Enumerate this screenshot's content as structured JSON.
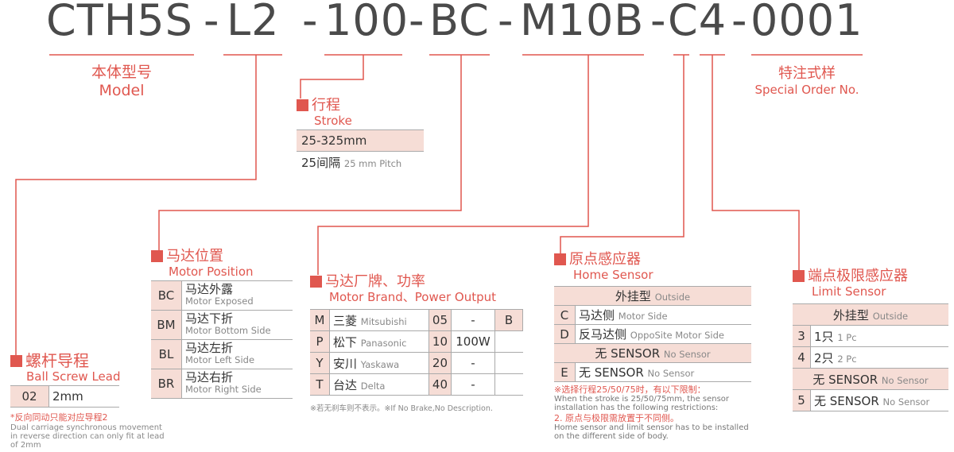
{
  "code": {
    "parts": [
      "CTH5S",
      "L2",
      "100",
      "BC",
      "M10B",
      "C4",
      "0001"
    ],
    "sep": "-"
  },
  "model": {
    "cn": "本体型号",
    "en": "Model"
  },
  "special": {
    "cn": "特注式样",
    "en": "Special Order No."
  },
  "stroke": {
    "cn": "行程",
    "en": "Stroke",
    "range": "25-325mm",
    "pitch_cn": "25间隔",
    "pitch_en": "25 mm Pitch"
  },
  "lead": {
    "cn": "螺杆导程",
    "en": "Ball Screw Lead",
    "code": "02",
    "value": "2mm",
    "note_cn": "*反向同动只能对应导程2",
    "note_en": "Dual carriage synchronous movement in reverse direction can only fit at lead of 2mm"
  },
  "position": {
    "cn": "马达位置",
    "en": "Motor Position",
    "rows": [
      {
        "code": "BC",
        "cn": "马达外露",
        "en": "Motor Exposed"
      },
      {
        "code": "BM",
        "cn": "马达下折",
        "en": "Motor Bottom Side"
      },
      {
        "code": "BL",
        "cn": "马达左折",
        "en": "Motor Left Side"
      },
      {
        "code": "BR",
        "cn": "马达右折",
        "en": "Motor Right Side"
      }
    ]
  },
  "brand": {
    "cn": "马达厂牌、功率",
    "en": "Motor Brand、Power Output",
    "rows": [
      {
        "code": "M",
        "cn": "三菱",
        "en": "Mitsubishi",
        "p": "05",
        "w": "-",
        "b": "B"
      },
      {
        "code": "P",
        "cn": "松下",
        "en": "Panasonic",
        "p": "10",
        "w": "100W",
        "b": ""
      },
      {
        "code": "Y",
        "cn": "安川",
        "en": "Yaskawa",
        "p": "20",
        "w": "-",
        "b": ""
      },
      {
        "code": "T",
        "cn": "台达",
        "en": "Delta",
        "p": "40",
        "w": "-",
        "b": ""
      }
    ],
    "note": "※若无刹车则不表示。※If No Brake,No Description."
  },
  "home": {
    "cn": "原点感应器",
    "en": "Home Sensor",
    "outside_cn": "外挂型",
    "outside_en": "Outside",
    "rows": [
      {
        "code": "C",
        "cn": "马达侧",
        "en": "Motor Side"
      },
      {
        "code": "D",
        "cn": "反马达侧",
        "en": "OppoSite Motor Side"
      }
    ],
    "none_cn": "无 SENSOR",
    "none_en": "No Sensor",
    "e_code": "E",
    "e_cn": "无 SENSOR",
    "e_en": "No Sensor",
    "note1_cn": "※选择行程25/50/75时，有以下限制：",
    "note1_en": "When the stroke is 25/50/75mm, the sensor installation has the following restrictions:",
    "note2_cn": "2. 原点与极限需放置于不同侧。",
    "note2_en": "Home sensor and limit sensor has to be installed on the different side of body."
  },
  "limit": {
    "cn": "端点极限感应器",
    "en": "Limit Sensor",
    "outside_cn": "外挂型",
    "outside_en": "Outside",
    "rows": [
      {
        "code": "3",
        "cn": "1只",
        "en": "1 Pc"
      },
      {
        "code": "4",
        "cn": "2只",
        "en": "2 Pc"
      }
    ],
    "none_cn": "无 SENSOR",
    "none_en": "No Sensor",
    "f_code": "5",
    "f_cn": "无 SENSOR",
    "f_en": "No Sensor"
  },
  "colors": {
    "accent": "#e0574f",
    "fill": "#f6ddd6",
    "text": "#4a4a4a"
  }
}
